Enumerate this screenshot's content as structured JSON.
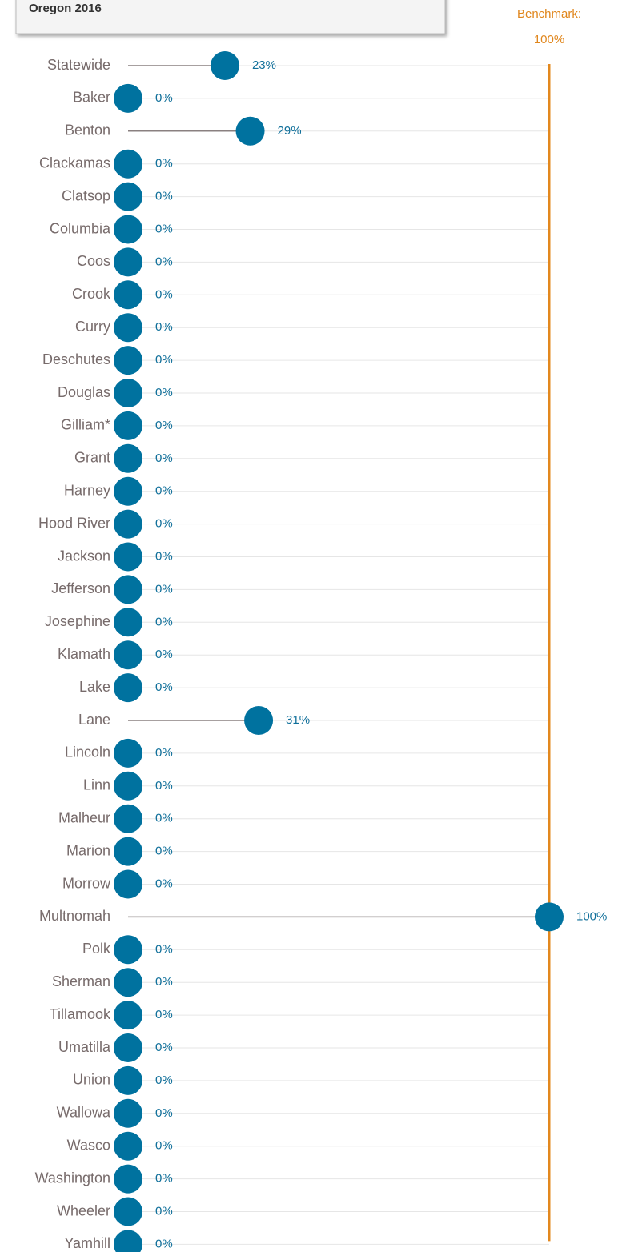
{
  "chart_data": {
    "type": "dot",
    "title": "Oregon 2016",
    "benchmark": {
      "label": "Benchmark:",
      "value": 100,
      "value_label": "100%",
      "color": "#e3881e"
    },
    "color": "#00729f",
    "xlim": [
      0,
      100
    ],
    "categories": [
      "Statewide",
      "Baker",
      "Benton",
      "Clackamas",
      "Clatsop",
      "Columbia",
      "Coos",
      "Crook",
      "Curry",
      "Deschutes",
      "Douglas",
      "Gilliam*",
      "Grant",
      "Harney",
      "Hood River",
      "Jackson",
      "Jefferson",
      "Josephine",
      "Klamath",
      "Lake",
      "Lane",
      "Lincoln",
      "Linn",
      "Malheur",
      "Marion",
      "Morrow",
      "Multnomah",
      "Polk",
      "Sherman",
      "Tillamook",
      "Umatilla",
      "Union",
      "Wallowa",
      "Wasco",
      "Washington",
      "Wheeler",
      "Yamhill"
    ],
    "values": [
      23,
      0,
      29,
      0,
      0,
      0,
      0,
      0,
      0,
      0,
      0,
      0,
      0,
      0,
      0,
      0,
      0,
      0,
      0,
      0,
      31,
      0,
      0,
      0,
      0,
      0,
      100,
      0,
      0,
      0,
      0,
      0,
      0,
      0,
      0,
      0,
      0
    ],
    "value_labels": [
      "23%",
      "0%",
      "29%",
      "0%",
      "0%",
      "0%",
      "0%",
      "0%",
      "0%",
      "0%",
      "0%",
      "0%",
      "0%",
      "0%",
      "0%",
      "0%",
      "0%",
      "0%",
      "0%",
      "0%",
      "31%",
      "0%",
      "0%",
      "0%",
      "0%",
      "0%",
      "100%",
      "0%",
      "0%",
      "0%",
      "0%",
      "0%",
      "0%",
      "0%",
      "0%",
      "0%",
      "0%"
    ]
  }
}
